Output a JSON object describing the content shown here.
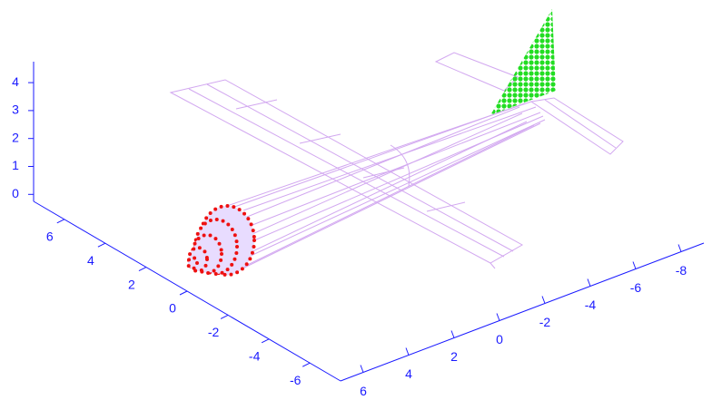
{
  "chart_data": {
    "type": "surface3d",
    "xticks": [
      6,
      4,
      2,
      0,
      -2,
      -4,
      -6,
      -8
    ],
    "xlim": [
      7,
      -9
    ],
    "yticks": [
      6,
      4,
      2,
      0,
      -2,
      -4,
      -6
    ],
    "ylim": [
      7.5,
      -7.5
    ],
    "zticks": [
      0,
      1,
      2,
      3,
      4
    ],
    "zlim": [
      -0.25,
      4.75
    ],
    "axis_color": "#1a1aff"
  }
}
